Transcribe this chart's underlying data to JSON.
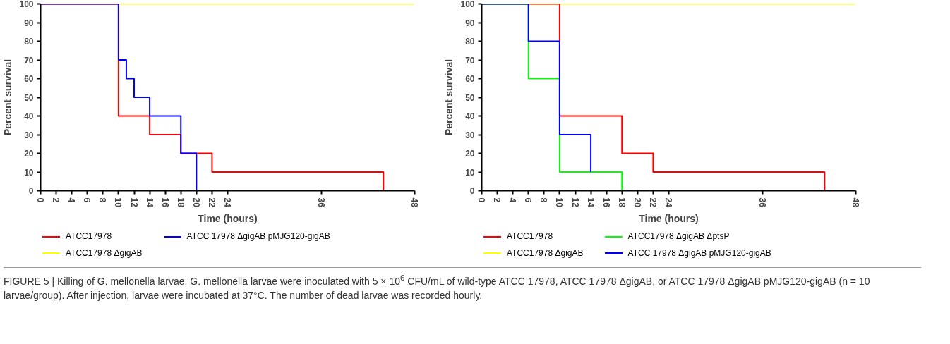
{
  "chart_data": [
    {
      "type": "step",
      "xlabel": "Time (hours)",
      "ylabel": "Percent survival",
      "xlim": [
        0,
        48
      ],
      "ylim": [
        0,
        100
      ],
      "xticks": [
        0,
        2,
        4,
        6,
        8,
        10,
        12,
        14,
        16,
        18,
        20,
        22,
        24,
        36,
        48
      ],
      "yticks": [
        0,
        10,
        20,
        30,
        40,
        50,
        60,
        70,
        80,
        90,
        100
      ],
      "grid": false,
      "legend": "bottom",
      "series": [
        {
          "name": "ATCC17978",
          "color": "#ff0000",
          "x": [
            0,
            10,
            14,
            18,
            22,
            44
          ],
          "values": [
            100,
            40,
            30,
            20,
            10,
            0
          ]
        },
        {
          "name": "ATCC 17978 ΔgigAB pMJG120-gigAB",
          "color": "#0000ff",
          "x": [
            0,
            10,
            11,
            12,
            14,
            18,
            20
          ],
          "values": [
            100,
            70,
            60,
            50,
            40,
            20,
            0
          ]
        },
        {
          "name": "ATCC17978 ΔgigAB",
          "color": "#ffff00",
          "x": [
            0,
            48
          ],
          "values": [
            100,
            100
          ]
        }
      ],
      "annotations": [
        "FIGURE 5 | Killing of G. mellonella larvae. G. mellonella larvae were inoculated with 5 × 10$^{6}$ CFU/mL of wild-type ATCC 17978, ATCC 17978 ΔgigAB, or ATCC 17978 ΔgigAB pMJG120-gigAB (n = 10 larvae/group). After injection, larvae were incubated at 37°C. The number of dead larvae was recorded hourly."
      ]
    },
    {
      "type": "step",
      "xlabel": "Time (hours)",
      "ylabel": "Percent survival",
      "xlim": [
        0,
        48
      ],
      "ylim": [
        0,
        100
      ],
      "xticks": [
        0,
        2,
        4,
        6,
        8,
        10,
        12,
        14,
        16,
        18,
        20,
        22,
        24,
        36,
        48
      ],
      "yticks": [
        0,
        10,
        20,
        30,
        40,
        50,
        60,
        70,
        80,
        90,
        100
      ],
      "grid": false,
      "legend": "bottom",
      "series": [
        {
          "name": "ATCC17978",
          "color": "#ff0000",
          "x": [
            0,
            10,
            18,
            22,
            44
          ],
          "values": [
            100,
            40,
            20,
            10,
            0
          ]
        },
        {
          "name": "ATCC17978 ΔgigAB ΔptsP",
          "color": "#00ff00",
          "x": [
            0,
            6,
            10,
            18
          ],
          "values": [
            100,
            60,
            10,
            0
          ]
        },
        {
          "name": "ATCC17978 ΔgigAB",
          "color": "#ffff00",
          "x": [
            0,
            48
          ],
          "values": [
            100,
            100
          ]
        },
        {
          "name": "ATCC 17978 ΔgigAB pMJG120-gigAB",
          "color": "#0000ff",
          "x": [
            0,
            6,
            10,
            14
          ],
          "values": [
            100,
            80,
            30,
            10
          ]
        }
      ]
    }
  ]
}
